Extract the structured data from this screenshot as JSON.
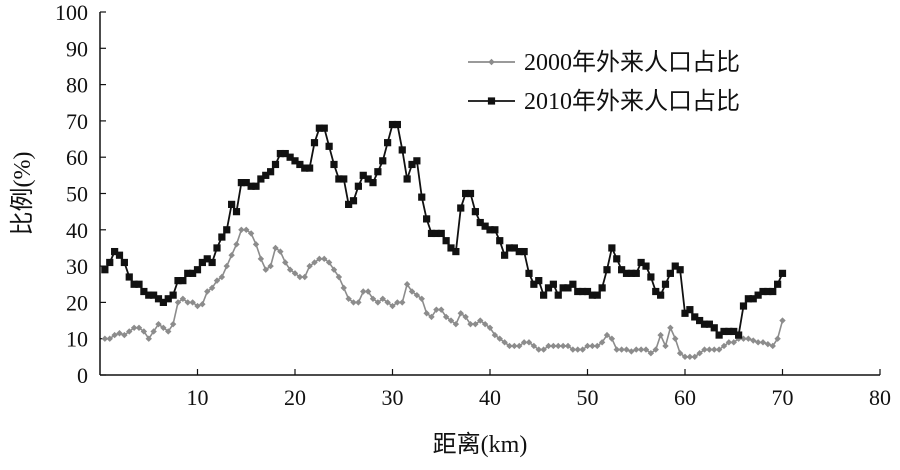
{
  "chart_data": {
    "type": "line",
    "title": "",
    "xlabel": "距离(km)",
    "ylabel": "比例(%)",
    "xlim": [
      0,
      80
    ],
    "ylim": [
      0,
      100
    ],
    "x_ticks": [
      10,
      20,
      30,
      40,
      50,
      60,
      70,
      80
    ],
    "y_ticks": [
      0,
      10,
      20,
      30,
      40,
      50,
      60,
      70,
      80,
      90,
      100
    ],
    "grid": false,
    "legend_position": "top-right",
    "series": [
      {
        "name": "2000年外来人口占比",
        "color": "#8c8c8c",
        "marker": "diamond",
        "points": [
          [
            0.5,
            10
          ],
          [
            1,
            10
          ],
          [
            1.5,
            11
          ],
          [
            2,
            11.5
          ],
          [
            2.5,
            11
          ],
          [
            3,
            12
          ],
          [
            3.5,
            13
          ],
          [
            4,
            13
          ],
          [
            4.5,
            12
          ],
          [
            5,
            10
          ],
          [
            5.5,
            12
          ],
          [
            6,
            14
          ],
          [
            6.5,
            13
          ],
          [
            7,
            12
          ],
          [
            7.5,
            14
          ],
          [
            8,
            20
          ],
          [
            8.5,
            21
          ],
          [
            9,
            20
          ],
          [
            9.5,
            20
          ],
          [
            10,
            19
          ],
          [
            10.5,
            19.5
          ],
          [
            11,
            23
          ],
          [
            11.5,
            24
          ],
          [
            12,
            26
          ],
          [
            12.5,
            27
          ],
          [
            13,
            30
          ],
          [
            13.5,
            33
          ],
          [
            14,
            36
          ],
          [
            14.5,
            40
          ],
          [
            15,
            40
          ],
          [
            15.5,
            39
          ],
          [
            16,
            36
          ],
          [
            16.5,
            32
          ],
          [
            17,
            29
          ],
          [
            17.5,
            30
          ],
          [
            18,
            35
          ],
          [
            18.5,
            34
          ],
          [
            19,
            31
          ],
          [
            19.5,
            29
          ],
          [
            20,
            28
          ],
          [
            20.5,
            27
          ],
          [
            21,
            27
          ],
          [
            21.5,
            30
          ],
          [
            22,
            31
          ],
          [
            22.5,
            32
          ],
          [
            23,
            32
          ],
          [
            23.5,
            31
          ],
          [
            24,
            29
          ],
          [
            24.5,
            27
          ],
          [
            25,
            24
          ],
          [
            25.5,
            21
          ],
          [
            26,
            20
          ],
          [
            26.5,
            20
          ],
          [
            27,
            23
          ],
          [
            27.5,
            23
          ],
          [
            28,
            21
          ],
          [
            28.5,
            20
          ],
          [
            29,
            21
          ],
          [
            29.5,
            20
          ],
          [
            30,
            19
          ],
          [
            30.5,
            20
          ],
          [
            31,
            20
          ],
          [
            31.5,
            25
          ],
          [
            32,
            23
          ],
          [
            32.5,
            22
          ],
          [
            33,
            21
          ],
          [
            33.5,
            17
          ],
          [
            34,
            16
          ],
          [
            34.5,
            18
          ],
          [
            35,
            18
          ],
          [
            35.5,
            16
          ],
          [
            36,
            15
          ],
          [
            36.5,
            14
          ],
          [
            37,
            17
          ],
          [
            37.5,
            16
          ],
          [
            38,
            14
          ],
          [
            38.5,
            14
          ],
          [
            39,
            15
          ],
          [
            39.5,
            14
          ],
          [
            40,
            13
          ],
          [
            40.5,
            11
          ],
          [
            41,
            10
          ],
          [
            41.5,
            9
          ],
          [
            42,
            8
          ],
          [
            42.5,
            8
          ],
          [
            43,
            8
          ],
          [
            43.5,
            9
          ],
          [
            44,
            9
          ],
          [
            44.5,
            8
          ],
          [
            45,
            7
          ],
          [
            45.5,
            7
          ],
          [
            46,
            8
          ],
          [
            46.5,
            8
          ],
          [
            47,
            8
          ],
          [
            47.5,
            8
          ],
          [
            48,
            8
          ],
          [
            48.5,
            7
          ],
          [
            49,
            7
          ],
          [
            49.5,
            7
          ],
          [
            50,
            8
          ],
          [
            50.5,
            8
          ],
          [
            51,
            8
          ],
          [
            51.5,
            9
          ],
          [
            52,
            11
          ],
          [
            52.5,
            10
          ],
          [
            53,
            7
          ],
          [
            53.5,
            7
          ],
          [
            54,
            7
          ],
          [
            54.5,
            6.5
          ],
          [
            55,
            7
          ],
          [
            55.5,
            7
          ],
          [
            56,
            7
          ],
          [
            56.5,
            6
          ],
          [
            57,
            7
          ],
          [
            57.5,
            11
          ],
          [
            58,
            8
          ],
          [
            58.5,
            13
          ],
          [
            59,
            10
          ],
          [
            59.5,
            6
          ],
          [
            60,
            5
          ],
          [
            60.5,
            5
          ],
          [
            61,
            5
          ],
          [
            61.5,
            6
          ],
          [
            62,
            7
          ],
          [
            62.5,
            7
          ],
          [
            63,
            7
          ],
          [
            63.5,
            7
          ],
          [
            64,
            8
          ],
          [
            64.5,
            9
          ],
          [
            65,
            9
          ],
          [
            65.5,
            10
          ],
          [
            66,
            10
          ],
          [
            66.5,
            10
          ],
          [
            67,
            9.5
          ],
          [
            67.5,
            9
          ],
          [
            68,
            9
          ],
          [
            68.5,
            8.5
          ],
          [
            69,
            8
          ],
          [
            69.5,
            10
          ],
          [
            70,
            15
          ]
        ]
      },
      {
        "name": "2010年外来人口占比",
        "color": "#111111",
        "marker": "square",
        "points": [
          [
            0.5,
            29
          ],
          [
            1,
            31
          ],
          [
            1.5,
            34
          ],
          [
            2,
            33
          ],
          [
            2.5,
            31
          ],
          [
            3,
            27
          ],
          [
            3.5,
            25
          ],
          [
            4,
            25
          ],
          [
            4.5,
            23
          ],
          [
            5,
            22
          ],
          [
            5.5,
            22
          ],
          [
            6,
            21
          ],
          [
            6.5,
            20
          ],
          [
            7,
            21
          ],
          [
            7.5,
            22
          ],
          [
            8,
            26
          ],
          [
            8.5,
            26
          ],
          [
            9,
            28
          ],
          [
            9.5,
            28
          ],
          [
            10,
            29
          ],
          [
            10.5,
            31
          ],
          [
            11,
            32
          ],
          [
            11.5,
            31
          ],
          [
            12,
            35
          ],
          [
            12.5,
            38
          ],
          [
            13,
            40
          ],
          [
            13.5,
            47
          ],
          [
            14,
            45
          ],
          [
            14.5,
            53
          ],
          [
            15,
            53
          ],
          [
            15.5,
            52
          ],
          [
            16,
            52
          ],
          [
            16.5,
            54
          ],
          [
            17,
            55
          ],
          [
            17.5,
            56
          ],
          [
            18,
            58
          ],
          [
            18.5,
            61
          ],
          [
            19,
            61
          ],
          [
            19.5,
            60
          ],
          [
            20,
            59
          ],
          [
            20.5,
            58
          ],
          [
            21,
            57
          ],
          [
            21.5,
            57
          ],
          [
            22,
            64
          ],
          [
            22.5,
            68
          ],
          [
            23,
            68
          ],
          [
            23.5,
            63
          ],
          [
            24,
            58
          ],
          [
            24.5,
            54
          ],
          [
            25,
            54
          ],
          [
            25.5,
            47
          ],
          [
            26,
            48
          ],
          [
            26.5,
            52
          ],
          [
            27,
            55
          ],
          [
            27.5,
            54
          ],
          [
            28,
            53
          ],
          [
            28.5,
            56
          ],
          [
            29,
            59
          ],
          [
            29.5,
            64
          ],
          [
            30,
            69
          ],
          [
            30.5,
            69
          ],
          [
            31,
            62
          ],
          [
            31.5,
            54
          ],
          [
            32,
            58
          ],
          [
            32.5,
            59
          ],
          [
            33,
            49
          ],
          [
            33.5,
            43
          ],
          [
            34,
            39
          ],
          [
            34.5,
            39
          ],
          [
            35,
            39
          ],
          [
            35.5,
            37
          ],
          [
            36,
            35
          ],
          [
            36.5,
            34
          ],
          [
            37,
            46
          ],
          [
            37.5,
            50
          ],
          [
            38,
            50
          ],
          [
            38.5,
            45
          ],
          [
            39,
            42
          ],
          [
            39.5,
            41
          ],
          [
            40,
            40
          ],
          [
            40.5,
            40
          ],
          [
            41,
            37
          ],
          [
            41.5,
            33
          ],
          [
            42,
            35
          ],
          [
            42.5,
            35
          ],
          [
            43,
            34
          ],
          [
            43.5,
            34
          ],
          [
            44,
            28
          ],
          [
            44.5,
            25
          ],
          [
            45,
            26
          ],
          [
            45.5,
            22
          ],
          [
            46,
            24
          ],
          [
            46.5,
            25
          ],
          [
            47,
            22
          ],
          [
            47.5,
            24
          ],
          [
            48,
            24
          ],
          [
            48.5,
            25
          ],
          [
            49,
            23
          ],
          [
            49.5,
            23
          ],
          [
            50,
            23
          ],
          [
            50.5,
            22
          ],
          [
            51,
            22
          ],
          [
            51.5,
            24
          ],
          [
            52,
            29
          ],
          [
            52.5,
            35
          ],
          [
            53,
            32
          ],
          [
            53.5,
            29
          ],
          [
            54,
            28
          ],
          [
            54.5,
            28
          ],
          [
            55,
            28
          ],
          [
            55.5,
            31
          ],
          [
            56,
            30
          ],
          [
            56.5,
            27
          ],
          [
            57,
            23
          ],
          [
            57.5,
            22
          ],
          [
            58,
            25
          ],
          [
            58.5,
            28
          ],
          [
            59,
            30
          ],
          [
            59.5,
            29
          ],
          [
            60,
            17
          ],
          [
            60.5,
            18
          ],
          [
            61,
            16
          ],
          [
            61.5,
            15
          ],
          [
            62,
            14
          ],
          [
            62.5,
            14
          ],
          [
            63,
            13
          ],
          [
            63.5,
            11
          ],
          [
            64,
            12
          ],
          [
            64.5,
            12
          ],
          [
            65,
            12
          ],
          [
            65.5,
            11
          ],
          [
            66,
            19
          ],
          [
            66.5,
            21
          ],
          [
            67,
            21
          ],
          [
            67.5,
            22
          ],
          [
            68,
            23
          ],
          [
            68.5,
            23
          ],
          [
            69,
            23
          ],
          [
            69.5,
            25
          ],
          [
            70,
            28
          ]
        ]
      }
    ]
  }
}
